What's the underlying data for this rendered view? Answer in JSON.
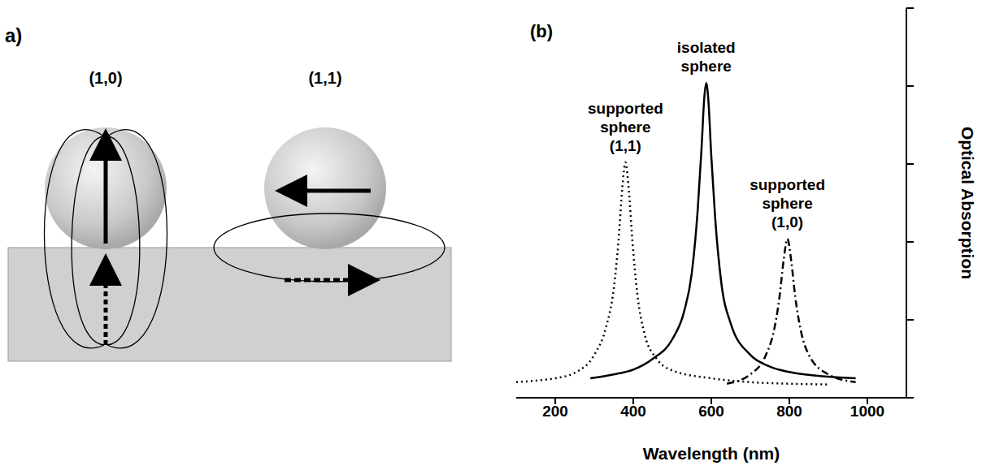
{
  "diagram": {
    "panel_label": "a)",
    "modes": [
      {
        "label": "(1,0)"
      },
      {
        "label": "(1,1)"
      }
    ]
  },
  "chart_data": {
    "type": "line",
    "panel_label": "(b)",
    "xlabel": "Wavelength (nm)",
    "ylabel": "Optical Absorption",
    "xlim": [
      100,
      1100
    ],
    "xticks": [
      200,
      400,
      600,
      800,
      1000
    ],
    "ylim": [
      0,
      5
    ],
    "yticks": [
      0,
      1,
      2,
      3,
      4,
      5
    ],
    "tick_labels": "x",
    "grid": false,
    "series": [
      {
        "name": "supported sphere (1,1)",
        "color": "#000000",
        "line_style": "dotted",
        "x": [
          100,
          150,
          200,
          250,
          300,
          330,
          350,
          362,
          372,
          380,
          388,
          398,
          410,
          430,
          460,
          500,
          600,
          700,
          800,
          900
        ],
        "values": [
          0.2,
          0.22,
          0.25,
          0.32,
          0.55,
          0.9,
          1.4,
          2.0,
          2.7,
          3.02,
          2.7,
          2.0,
          1.35,
          0.8,
          0.5,
          0.35,
          0.25,
          0.2,
          0.18,
          0.17
        ]
      },
      {
        "name": "isolated sphere",
        "color": "#000000",
        "line_style": "solid",
        "x": [
          290,
          350,
          400,
          450,
          500,
          530,
          550,
          565,
          575,
          582,
          587,
          592,
          600,
          610,
          625,
          650,
          700,
          750,
          800,
          900,
          970
        ],
        "values": [
          0.25,
          0.3,
          0.36,
          0.5,
          0.75,
          1.1,
          1.6,
          2.4,
          3.2,
          3.85,
          4.04,
          3.85,
          3.1,
          2.3,
          1.5,
          0.95,
          0.55,
          0.4,
          0.33,
          0.27,
          0.25
        ]
      },
      {
        "name": "supported sphere (1,0)",
        "color": "#000000",
        "line_style": "dashdot",
        "x": [
          640,
          700,
          740,
          760,
          775,
          785,
          795,
          805,
          815,
          830,
          850,
          900,
          970
        ],
        "values": [
          0.18,
          0.3,
          0.55,
          0.85,
          1.3,
          1.75,
          2.04,
          1.75,
          1.3,
          0.85,
          0.55,
          0.3,
          0.2
        ]
      }
    ]
  }
}
